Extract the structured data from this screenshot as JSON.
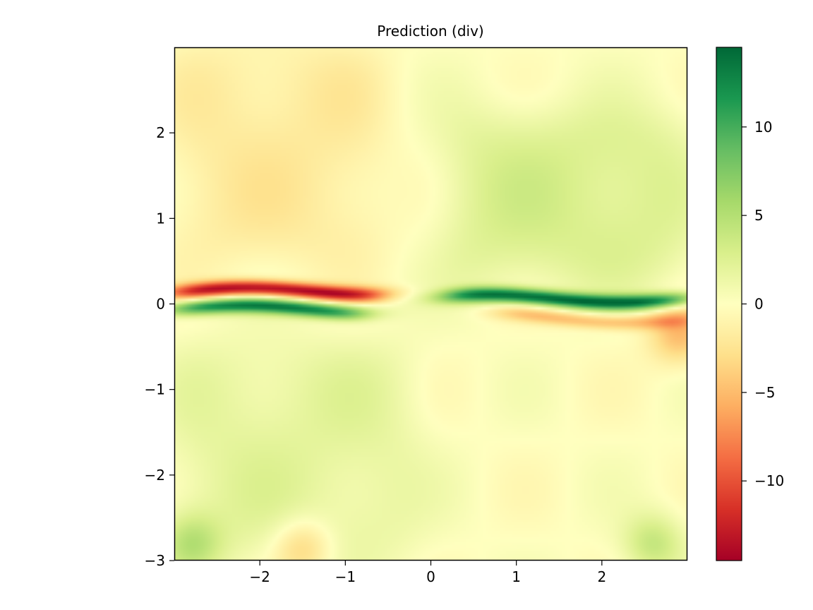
{
  "chart_data": {
    "type": "heatmap",
    "title": "Prediction (div)",
    "xlabel": "",
    "ylabel": "",
    "xlim": [
      -3,
      3
    ],
    "ylim": [
      -3,
      3
    ],
    "x_ticks": [
      -2,
      -1,
      0,
      1,
      2
    ],
    "y_ticks": [
      -3,
      -2,
      -1,
      0,
      1,
      2
    ],
    "x_tick_labels": [
      "−2",
      "−1",
      "0",
      "1",
      "2"
    ],
    "y_tick_labels": [
      "−3",
      "−2",
      "−1",
      "0",
      "1",
      "2"
    ],
    "grid": false,
    "colormap": "RdYlGn",
    "colorbar": {
      "vmin": -14.5,
      "vmax": 14.5,
      "ticks": [
        -10,
        -5,
        0,
        5,
        10
      ],
      "tick_labels": [
        "−10",
        "−5",
        "0",
        "5",
        "10"
      ],
      "placement": "right"
    },
    "field_features": [
      {
        "kind": "band",
        "sign": "negative",
        "amplitude": -14,
        "center_y_at_left": 0.15,
        "center_y_at_right": 0.15,
        "x_range": [
          -3,
          -0.6
        ],
        "note": "strong negative band just above y=0"
      },
      {
        "kind": "band",
        "sign": "positive",
        "amplitude": 13,
        "center_y_at_left": -0.05,
        "center_y_at_right": -0.1,
        "x_range": [
          -3,
          -0.8
        ]
      },
      {
        "kind": "band",
        "sign": "positive",
        "amplitude": 14,
        "center_y_at_left": 0.1,
        "center_y_at_right": 0.05,
        "x_range": [
          0.2,
          3
        ]
      },
      {
        "kind": "band",
        "sign": "negative",
        "amplitude": -5,
        "center_y_at_left": -0.05,
        "center_y_at_right": -0.2,
        "x_range": [
          0.8,
          3
        ]
      },
      {
        "kind": "region",
        "sign": "positive",
        "amplitude": 3,
        "x_range": [
          0.2,
          3
        ],
        "y_range": [
          0.3,
          2.2
        ]
      },
      {
        "kind": "region",
        "sign": "negative",
        "amplitude": -2,
        "x_range": [
          -3,
          -0.6
        ],
        "y_range": [
          0.5,
          3
        ]
      },
      {
        "kind": "region",
        "sign": "positive",
        "amplitude": 2,
        "x_range": [
          -3,
          -0.2
        ],
        "y_range": [
          -3,
          -0.5
        ]
      },
      {
        "kind": "spot",
        "sign": "negative",
        "amplitude": -4,
        "x": -1.5,
        "y": -2.85
      },
      {
        "kind": "spot",
        "sign": "positive",
        "amplitude": 4,
        "x": 2.6,
        "y": -2.8
      },
      {
        "kind": "spot",
        "sign": "positive",
        "amplitude": 4,
        "x": -2.8,
        "y": -2.8
      },
      {
        "kind": "spot",
        "sign": "negative",
        "amplitude": -5,
        "x": 2.9,
        "y": -0.35
      }
    ]
  }
}
